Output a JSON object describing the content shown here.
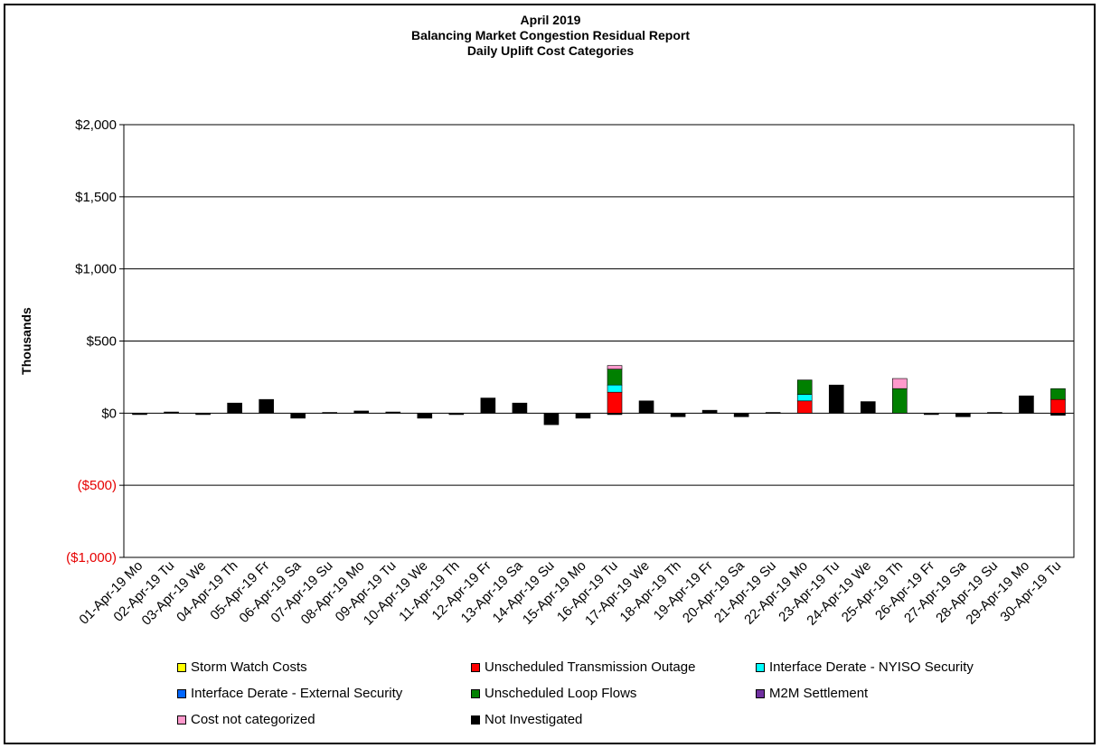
{
  "chart_data": {
    "type": "bar",
    "stacked": true,
    "title": [
      "April 2019",
      "Balancing Market Congestion Residual Report",
      "Daily Uplift Cost Categories"
    ],
    "ylabel": "Thousands",
    "ylim": [
      -1000,
      2000
    ],
    "yticks": [
      2000,
      1500,
      1000,
      500,
      0,
      -500,
      -1000
    ],
    "yticklabels": [
      "$2,000",
      "$1,500",
      "$1,000",
      "$500",
      "$0",
      "($500)",
      "($1,000)"
    ],
    "negative_label_color": "#e60000",
    "grid": true,
    "legend_position": "bottom",
    "categories": [
      "01-Apr-19 Mo",
      "02-Apr-19 Tu",
      "03-Apr-19 We",
      "04-Apr-19 Th",
      "05-Apr-19 Fr",
      "06-Apr-19 Sa",
      "07-Apr-19 Su",
      "08-Apr-19 Mo",
      "09-Apr-19 Tu",
      "10-Apr-19 We",
      "11-Apr-19 Th",
      "12-Apr-19 Fr",
      "13-Apr-19 Sa",
      "14-Apr-19 Su",
      "15-Apr-19 Mo",
      "16-Apr-19 Tu",
      "17-Apr-19 We",
      "18-Apr-19 Th",
      "19-Apr-19 Fr",
      "20-Apr-19 Sa",
      "21-Apr-19 Su",
      "22-Apr-19 Mo",
      "23-Apr-19 Tu",
      "24-Apr-19 We",
      "25-Apr-19 Th",
      "26-Apr-19 Fr",
      "27-Apr-19 Sa",
      "28-Apr-19 Su",
      "29-Apr-19 Mo",
      "30-Apr-19 Tu"
    ],
    "series": [
      {
        "name": "Storm Watch Costs",
        "color": "#ffff00",
        "values": [
          0,
          0,
          0,
          0,
          0,
          0,
          0,
          0,
          0,
          0,
          0,
          0,
          0,
          0,
          0,
          0,
          0,
          0,
          0,
          0,
          0,
          0,
          0,
          0,
          0,
          0,
          0,
          0,
          0,
          0
        ]
      },
      {
        "name": "Unscheduled Transmission Outage",
        "color": "#ff0000",
        "values": [
          0,
          0,
          0,
          0,
          0,
          0,
          0,
          0,
          0,
          0,
          0,
          0,
          0,
          0,
          0,
          145,
          0,
          0,
          0,
          0,
          0,
          85,
          0,
          0,
          0,
          0,
          0,
          0,
          0,
          95
        ]
      },
      {
        "name": "Interface Derate - NYISO Security",
        "color": "#00ffff",
        "values": [
          0,
          0,
          0,
          0,
          0,
          0,
          0,
          0,
          0,
          0,
          0,
          0,
          0,
          0,
          0,
          50,
          0,
          0,
          0,
          0,
          0,
          45,
          0,
          0,
          0,
          0,
          0,
          0,
          0,
          0
        ]
      },
      {
        "name": "Interface Derate - External Security",
        "color": "#0066ff",
        "values": [
          0,
          0,
          0,
          0,
          0,
          0,
          0,
          0,
          0,
          0,
          0,
          0,
          0,
          0,
          0,
          0,
          0,
          0,
          0,
          0,
          0,
          0,
          0,
          0,
          0,
          0,
          0,
          0,
          0,
          0
        ]
      },
      {
        "name": "Unscheduled Loop Flows",
        "color": "#008000",
        "values": [
          0,
          0,
          0,
          0,
          0,
          0,
          0,
          0,
          0,
          0,
          0,
          0,
          0,
          0,
          0,
          110,
          0,
          0,
          0,
          0,
          0,
          100,
          0,
          0,
          170,
          0,
          0,
          0,
          0,
          75
        ]
      },
      {
        "name": "M2M Settlement",
        "color": "#7030a0",
        "values": [
          0,
          0,
          0,
          0,
          0,
          0,
          0,
          0,
          0,
          0,
          0,
          0,
          0,
          0,
          0,
          0,
          0,
          0,
          0,
          0,
          0,
          0,
          0,
          0,
          0,
          0,
          0,
          0,
          0,
          0
        ]
      },
      {
        "name": "Cost not categorized",
        "color": "#ff99cc",
        "values": [
          0,
          0,
          0,
          0,
          0,
          0,
          0,
          0,
          0,
          0,
          0,
          0,
          0,
          0,
          0,
          25,
          0,
          0,
          0,
          0,
          0,
          0,
          0,
          0,
          70,
          0,
          0,
          0,
          0,
          0
        ]
      },
      {
        "name": "Not Investigated",
        "color": "#000000",
        "values": [
          -10,
          8,
          -10,
          70,
          95,
          -35,
          5,
          15,
          8,
          -35,
          -10,
          105,
          70,
          -80,
          -35,
          -10,
          85,
          -25,
          20,
          -25,
          5,
          0,
          195,
          80,
          0,
          -10,
          -25,
          5,
          120,
          -15
        ]
      }
    ]
  }
}
